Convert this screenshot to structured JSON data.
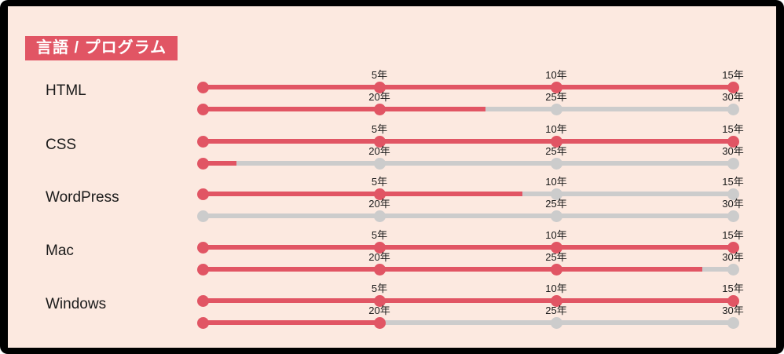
{
  "title": "言語 / プログラム",
  "colors": {
    "accent_red": "#e15564",
    "track_gray": "#cccccc",
    "panel_bg": "#fce9e0",
    "frame_black": "#000000",
    "badge_text": "#ffffff",
    "text": "#1a1a1a"
  },
  "chart_data": {
    "type": "bar",
    "title": "言語 / プログラム",
    "categories": [
      "HTML",
      "CSS",
      "WordPress",
      "Mac",
      "Windows"
    ],
    "values": [
      23,
      16,
      9,
      29,
      20
    ],
    "value_unit": "年 (years of experience)",
    "xlim": [
      0,
      30
    ],
    "tick_labels": [
      "5年",
      "10年",
      "15年",
      "20年",
      "25年",
      "30年"
    ],
    "legend_position": "none",
    "grid": false,
    "layout_hint": "each category drawn as two stacked horizontal progress tracks: 0-15年 (top) and 15-30年 (bottom); red = attained years, gray = remainder; dots at every 5-year tick"
  },
  "skills": [
    {
      "id": "html",
      "label": "HTML",
      "years": 23,
      "tracks": [
        {
          "ticks": [
            "5年",
            "10年",
            "15年"
          ],
          "fill_pct": 100,
          "dots": [
            "red",
            "red",
            "red",
            "red"
          ]
        },
        {
          "ticks": [
            "20年",
            "25年",
            "30年"
          ],
          "fill_pct": 53.3,
          "dots": [
            "red",
            "red",
            "gray",
            "gray"
          ]
        }
      ]
    },
    {
      "id": "css",
      "label": "CSS",
      "years": 16,
      "tracks": [
        {
          "ticks": [
            "5年",
            "10年",
            "15年"
          ],
          "fill_pct": 100,
          "dots": [
            "red",
            "red",
            "red",
            "red"
          ]
        },
        {
          "ticks": [
            "20年",
            "25年",
            "30年"
          ],
          "fill_pct": 6.4,
          "dots": [
            "red",
            "gray",
            "gray",
            "gray"
          ]
        }
      ]
    },
    {
      "id": "wordpress",
      "label": "WordPress",
      "years": 9,
      "tracks": [
        {
          "ticks": [
            "5年",
            "10年",
            "15年"
          ],
          "fill_pct": 60.3,
          "dots": [
            "red",
            "red",
            "gray",
            "gray"
          ]
        },
        {
          "ticks": [
            "20年",
            "25年",
            "30年"
          ],
          "fill_pct": 0,
          "dots": [
            "gray",
            "gray",
            "gray",
            "gray"
          ]
        }
      ]
    },
    {
      "id": "mac",
      "label": "Mac",
      "years": 29,
      "tracks": [
        {
          "ticks": [
            "5年",
            "10年",
            "15年"
          ],
          "fill_pct": 100,
          "dots": [
            "red",
            "red",
            "red",
            "red"
          ]
        },
        {
          "ticks": [
            "20年",
            "25年",
            "30年"
          ],
          "fill_pct": 94.2,
          "dots": [
            "red",
            "red",
            "red",
            "gray"
          ]
        }
      ]
    },
    {
      "id": "windows",
      "label": "Windows",
      "years": 20,
      "tracks": [
        {
          "ticks": [
            "5年",
            "10年",
            "15年"
          ],
          "fill_pct": 100,
          "dots": [
            "red",
            "red",
            "red",
            "red"
          ]
        },
        {
          "ticks": [
            "20年",
            "25年",
            "30年"
          ],
          "fill_pct": 33.3,
          "dots": [
            "red",
            "red",
            "gray",
            "gray"
          ]
        }
      ]
    }
  ]
}
